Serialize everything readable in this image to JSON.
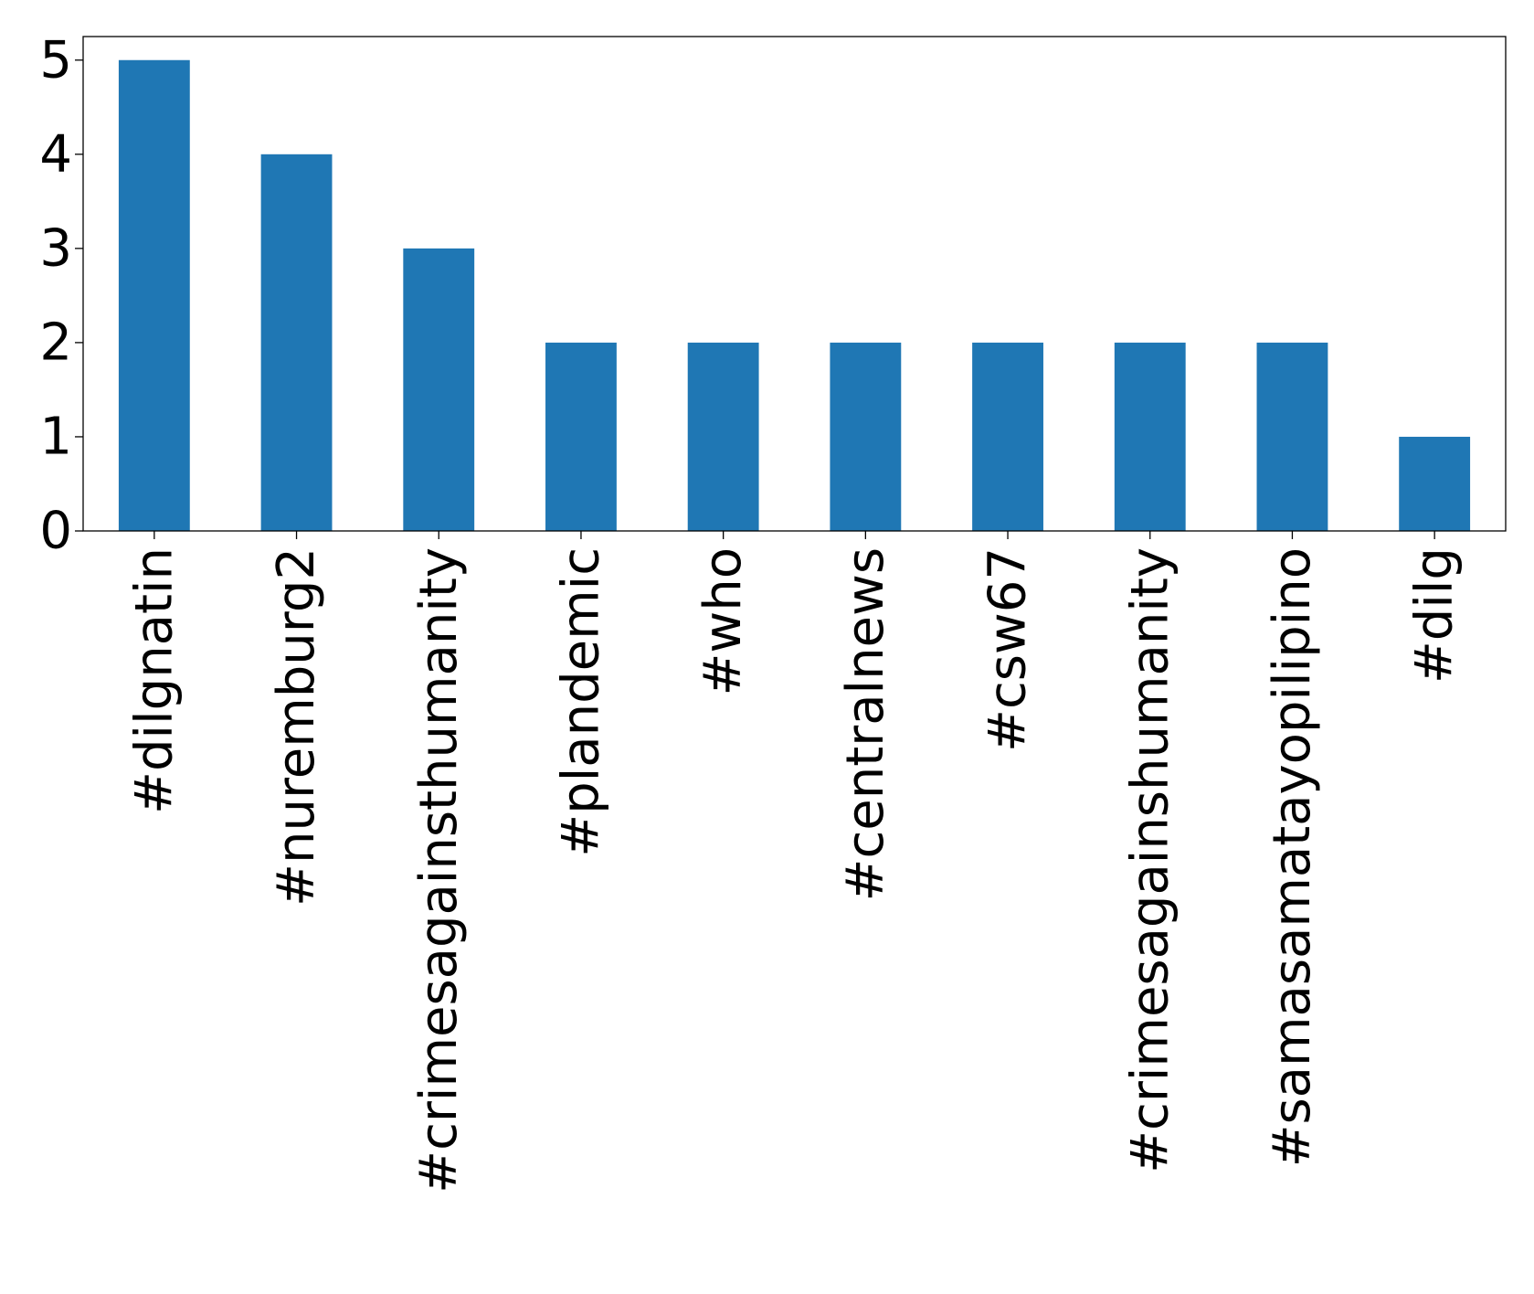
{
  "chart_data": {
    "type": "bar",
    "categories": [
      "#dilgnatin",
      "#nuremburg2",
      "#crimesagainsthumanity",
      "#plandemic",
      "#who",
      "#centralnews",
      "#csw67",
      "#crimesagainshumanity",
      "#samasamatayopilipino",
      "#dilg"
    ],
    "values": [
      5,
      4,
      3,
      2,
      2,
      2,
      2,
      2,
      2,
      1
    ],
    "title": "",
    "xlabel": "",
    "ylabel": "",
    "ylim": [
      0,
      5.25
    ],
    "yticks": [
      0,
      1,
      2,
      3,
      4,
      5
    ],
    "grid": false,
    "legend": "none",
    "colors": {
      "bar": "#1f77b4",
      "axes": "#000000",
      "background": "#ffffff"
    }
  }
}
